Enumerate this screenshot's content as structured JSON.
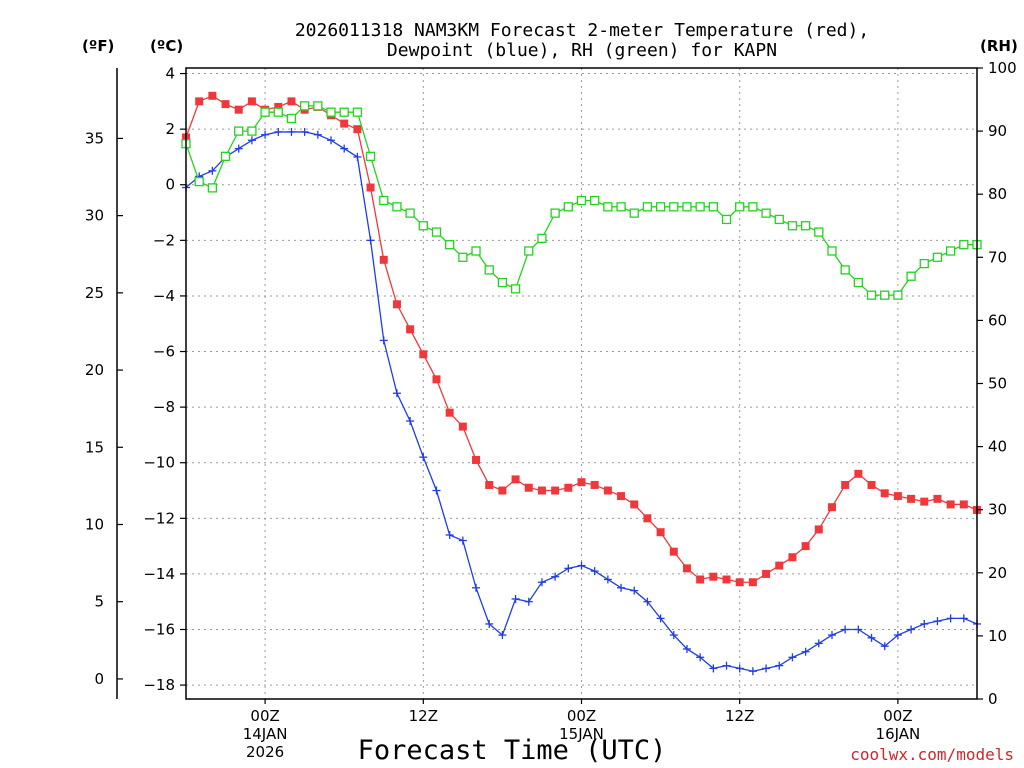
{
  "chart_data": {
    "type": "line",
    "title_line1": "2026011318 NAM3KM Forecast 2-meter Temperature (red),",
    "title_line2": "Dewpoint (blue), RH (green) for KAPN",
    "left_axis_f_label": "(ºF)",
    "left_axis_c_label": "(ºC)",
    "right_axis_label": "(RH)",
    "xlabel": "Forecast Time (UTC)",
    "credit": "coolwx.com/models",
    "xlim_hours": [
      0,
      60
    ],
    "ylim_c": [
      -18.5,
      4.2
    ],
    "ylim_rh": [
      0,
      100
    ],
    "c_ticks": [
      4,
      2,
      0,
      -2,
      -4,
      -6,
      -8,
      -10,
      -12,
      -14,
      -16,
      -18
    ],
    "f_ticks": [
      35,
      30,
      25,
      20,
      15,
      10,
      5,
      0
    ],
    "rh_ticks": [
      100,
      90,
      80,
      70,
      60,
      50,
      40,
      30,
      20,
      10,
      0
    ],
    "x_grid_hours": [
      6,
      18,
      30,
      42,
      54
    ],
    "x_ticks": [
      {
        "hour": 6,
        "lines": [
          "00Z",
          "14JAN",
          "2026"
        ]
      },
      {
        "hour": 18,
        "lines": [
          "12Z"
        ]
      },
      {
        "hour": 30,
        "lines": [
          "00Z",
          "15JAN"
        ]
      },
      {
        "hour": 42,
        "lines": [
          "12Z"
        ]
      },
      {
        "hour": 54,
        "lines": [
          "00Z",
          "16JAN"
        ]
      }
    ],
    "x_hours": [
      0,
      1,
      2,
      3,
      4,
      5,
      6,
      7,
      8,
      9,
      10,
      11,
      12,
      13,
      14,
      15,
      16,
      17,
      18,
      19,
      20,
      21,
      22,
      23,
      24,
      25,
      26,
      27,
      28,
      29,
      30,
      31,
      32,
      33,
      34,
      35,
      36,
      37,
      38,
      39,
      40,
      41,
      42,
      43,
      44,
      45,
      46,
      47,
      48,
      49,
      50,
      51,
      52,
      53,
      54,
      55,
      56,
      57,
      58,
      59,
      60
    ],
    "series": [
      {
        "name": "2-meter Temperature",
        "unit": "C",
        "color": "#f0383c",
        "marker": "filled-square",
        "values": [
          1.7,
          3.0,
          3.2,
          2.9,
          2.7,
          3.0,
          2.7,
          2.8,
          3.0,
          2.7,
          2.8,
          2.5,
          2.2,
          2.0,
          -0.1,
          -2.7,
          -4.3,
          -5.2,
          -6.1,
          -7.0,
          -8.2,
          -8.7,
          -9.9,
          -10.8,
          -11.0,
          -10.6,
          -10.9,
          -11.0,
          -11.0,
          -10.9,
          -10.7,
          -10.8,
          -11.0,
          -11.2,
          -11.5,
          -12.0,
          -12.5,
          -13.2,
          -13.8,
          -14.2,
          -14.1,
          -14.2,
          -14.3,
          -14.3,
          -14.0,
          -13.7,
          -13.4,
          -13.0,
          -12.4,
          -11.6,
          -10.8,
          -10.4,
          -10.8,
          -11.1,
          -11.2,
          -11.3,
          -11.4,
          -11.3,
          -11.5,
          -11.5,
          -11.7
        ]
      },
      {
        "name": "Dewpoint",
        "unit": "C",
        "color": "#1f3de8",
        "marker": "plus",
        "values": [
          -0.1,
          0.3,
          0.5,
          1.0,
          1.3,
          1.6,
          1.8,
          1.9,
          1.9,
          1.9,
          1.8,
          1.6,
          1.3,
          1.0,
          -2.0,
          -5.6,
          -7.5,
          -8.5,
          -9.8,
          -11.0,
          -12.6,
          -12.8,
          -14.5,
          -15.8,
          -16.2,
          -14.9,
          -15.0,
          -14.3,
          -14.1,
          -13.8,
          -13.7,
          -13.9,
          -14.2,
          -14.5,
          -14.6,
          -15.0,
          -15.6,
          -16.2,
          -16.7,
          -17.0,
          -17.4,
          -17.3,
          -17.4,
          -17.5,
          -17.4,
          -17.3,
          -17.0,
          -16.8,
          -16.5,
          -16.2,
          -16.0,
          -16.0,
          -16.3,
          -16.6,
          -16.2,
          -16.0,
          -15.8,
          -15.7,
          -15.6,
          -15.6,
          -15.8
        ]
      },
      {
        "name": "RH",
        "unit": "%",
        "color": "#22d41c",
        "marker": "open-square",
        "values": [
          88,
          82,
          81,
          86,
          90,
          90,
          93,
          93,
          92,
          94,
          94,
          93,
          93,
          93,
          86,
          79,
          78,
          77,
          75,
          74,
          72,
          70,
          71,
          68,
          66,
          65,
          71,
          73,
          77,
          78,
          79,
          79,
          78,
          78,
          77,
          78,
          78,
          78,
          78,
          78,
          78,
          76,
          78,
          78,
          77,
          76,
          75,
          75,
          74,
          71,
          68,
          66,
          64,
          64,
          64,
          67,
          69,
          70,
          71,
          72,
          72
        ]
      }
    ]
  }
}
